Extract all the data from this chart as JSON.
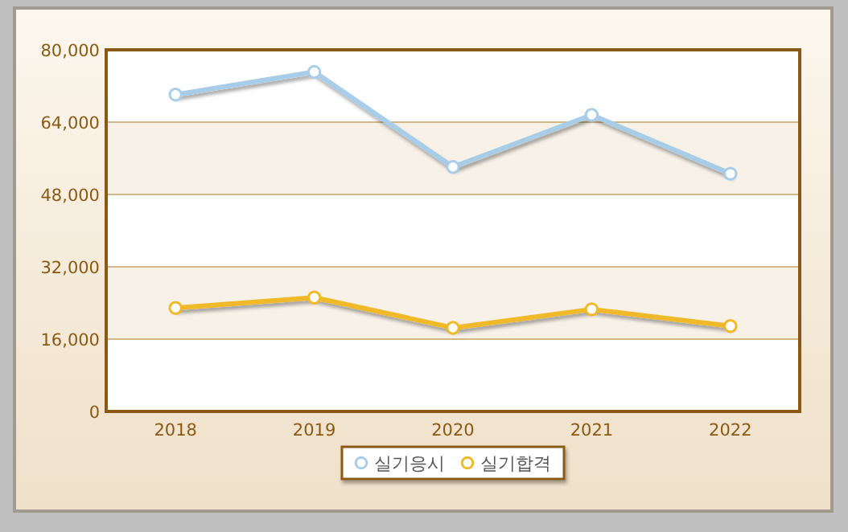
{
  "chart_data": {
    "type": "line",
    "categories": [
      "2018",
      "2019",
      "2020",
      "2021",
      "2022"
    ],
    "series": [
      {
        "name": "실기응시",
        "color": "#a8cde8",
        "values": [
          70100,
          75100,
          54100,
          65600,
          52600
        ]
      },
      {
        "name": "실기합격",
        "color": "#f0b92a",
        "values": [
          22900,
          25200,
          18500,
          22600,
          18900
        ]
      }
    ],
    "ylim": [
      0,
      80000
    ],
    "yticks": [
      {
        "value": 0,
        "label": "0"
      },
      {
        "value": 16000,
        "label": "16,000"
      },
      {
        "value": 32000,
        "label": "32,000"
      },
      {
        "value": 48000,
        "label": "48,000"
      },
      {
        "value": 64000,
        "label": "64,000"
      },
      {
        "value": 80000,
        "label": "80,000"
      }
    ],
    "grid": "y",
    "legend": "bottom",
    "marker": "circle"
  }
}
